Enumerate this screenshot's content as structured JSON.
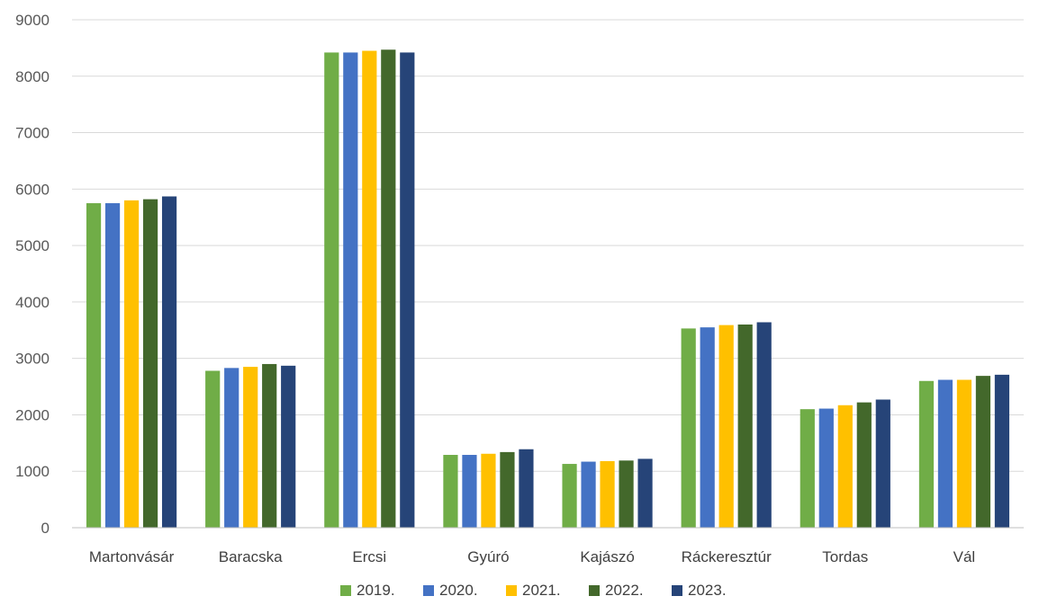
{
  "chart_data": {
    "type": "bar",
    "categories": [
      "Martonvásár",
      "Baracska",
      "Ercsi",
      "Gyúró",
      "Kajászó",
      "Ráckeresztúr",
      "Tordas",
      "Vál"
    ],
    "series": [
      {
        "name": "2019.",
        "color": "#70ad47",
        "values": [
          5750,
          2780,
          8420,
          1290,
          1130,
          3530,
          2100,
          2600
        ]
      },
      {
        "name": "2020.",
        "color": "#4472c4",
        "values": [
          5750,
          2830,
          8420,
          1290,
          1170,
          3550,
          2110,
          2620
        ]
      },
      {
        "name": "2021.",
        "color": "#ffc000",
        "values": [
          5800,
          2850,
          8450,
          1310,
          1180,
          3590,
          2170,
          2620
        ]
      },
      {
        "name": "2022.",
        "color": "#43682b",
        "values": [
          5820,
          2900,
          8470,
          1340,
          1190,
          3600,
          2220,
          2690
        ]
      },
      {
        "name": "2023.",
        "color": "#264478",
        "values": [
          5870,
          2870,
          8420,
          1390,
          1220,
          3640,
          2270,
          2710
        ]
      }
    ],
    "yticks": [
      "0",
      "1000",
      "2000",
      "3000",
      "4000",
      "5000",
      "6000",
      "7000",
      "8000",
      "9000"
    ],
    "ylim": [
      0,
      9000
    ],
    "title": "",
    "xlabel": "",
    "ylabel": "",
    "grid": true,
    "legend": "bottom"
  }
}
